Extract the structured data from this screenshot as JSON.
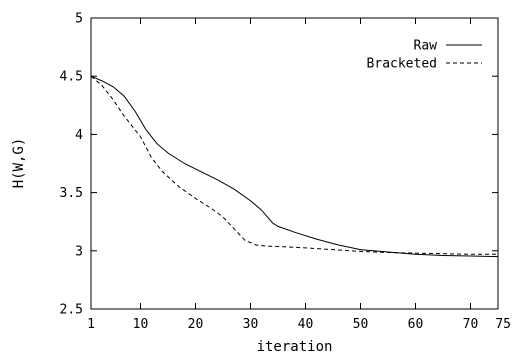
{
  "chart_data": {
    "type": "line",
    "title": "",
    "xlabel": "iteration",
    "ylabel": "H(W,G)",
    "xlim": [
      1,
      75
    ],
    "ylim": [
      2.5,
      5
    ],
    "x_ticks": [
      1,
      10,
      20,
      30,
      40,
      50,
      60,
      70,
      75
    ],
    "y_ticks": [
      2.5,
      3,
      3.5,
      4,
      4.5,
      5
    ],
    "y_tick_labels": [
      "2.5",
      "3",
      "3.5",
      "4",
      "4.5",
      "5"
    ],
    "grid": false,
    "legend_position": "top-right",
    "series": [
      {
        "name": "Raw",
        "style": "solid",
        "color": "#000000",
        "x": [
          1,
          3,
          5,
          7,
          9,
          11,
          13,
          15,
          18,
          21,
          24,
          27,
          30,
          32,
          34,
          35,
          38,
          42,
          46,
          50,
          55,
          60,
          65,
          70,
          75
        ],
        "y": [
          4.5,
          4.46,
          4.41,
          4.33,
          4.2,
          4.04,
          3.92,
          3.84,
          3.75,
          3.68,
          3.61,
          3.53,
          3.43,
          3.35,
          3.24,
          3.21,
          3.16,
          3.1,
          3.05,
          3.01,
          2.99,
          2.97,
          2.96,
          2.955,
          2.95
        ]
      },
      {
        "name": "Bracketed",
        "style": "dashed",
        "color": "#000000",
        "x": [
          1,
          3,
          5,
          7,
          10,
          12,
          14,
          17,
          20,
          23,
          25,
          27,
          29,
          31,
          33,
          36,
          40,
          45,
          50,
          55,
          60,
          65,
          70,
          75
        ],
        "y": [
          4.5,
          4.42,
          4.3,
          4.16,
          3.98,
          3.8,
          3.68,
          3.55,
          3.45,
          3.36,
          3.29,
          3.19,
          3.09,
          3.05,
          3.04,
          3.035,
          3.025,
          3.01,
          2.995,
          2.985,
          2.98,
          2.975,
          2.97,
          2.97
        ]
      }
    ]
  }
}
